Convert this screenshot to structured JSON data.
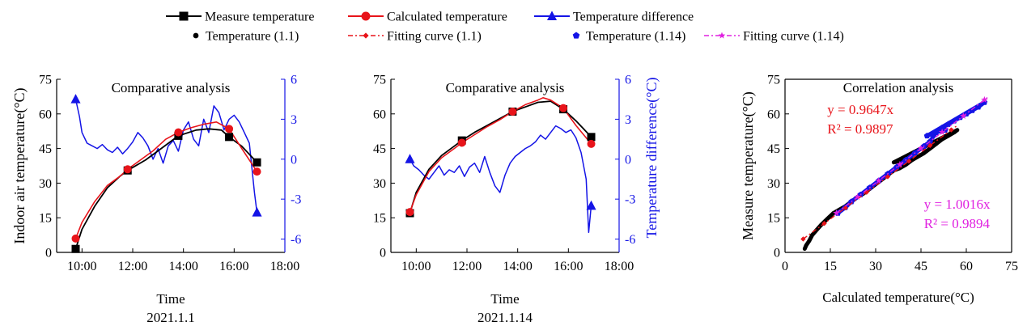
{
  "legend": {
    "items": [
      {
        "label": "Measure temperature",
        "color": "#000000",
        "marker": "square",
        "line": "solid"
      },
      {
        "label": "Calculated temperature",
        "color": "#e8141a",
        "marker": "circle",
        "line": "solid"
      },
      {
        "label": "Temperature difference",
        "color": "#1414e6",
        "marker": "triangle",
        "line": "solid"
      },
      {
        "label": "Temperature (1.1)",
        "color": "#000000",
        "marker": "dot",
        "line": "none"
      },
      {
        "label": "Fitting curve (1.1)",
        "color": "#e8141a",
        "marker": "diamond",
        "line": "dashdot"
      },
      {
        "label": "Temperature (1.14)",
        "color": "#1414e6",
        "marker": "pentagon",
        "line": "none"
      },
      {
        "label": "Fitting curve (1.14)",
        "color": "#e020e0",
        "marker": "star",
        "line": "dashdot"
      }
    ]
  },
  "chart_data": [
    {
      "type": "line",
      "title": "Comparative analysis",
      "xlabel": "Time",
      "sublabel": "2021.1.1",
      "ylabel": "Indoor air temperature(°C)",
      "y2label": "",
      "xlim": [
        9,
        18
      ],
      "xticks": [
        10,
        12,
        14,
        16,
        18
      ],
      "xticklabels": [
        "10:00",
        "12:00",
        "14:00",
        "16:00",
        "18:00"
      ],
      "ylim": [
        0,
        75
      ],
      "yticks": [
        0,
        15,
        30,
        45,
        60,
        75
      ],
      "y2lim": [
        -7,
        6
      ],
      "y2ticks": [
        -6,
        -3,
        0,
        3,
        6
      ],
      "y2color": "#1414e6",
      "measured": {
        "x": [
          9.75,
          10.0,
          10.5,
          11.0,
          11.5,
          11.8,
          12.5,
          13.0,
          13.8,
          14.5,
          15.0,
          15.5,
          15.8,
          16.3,
          16.9
        ],
        "y": [
          1.5,
          10,
          20,
          28,
          33,
          35.5,
          40,
          44,
          50.5,
          53,
          53.5,
          53,
          50,
          46,
          39
        ]
      },
      "measured_markers": {
        "x": [
          9.75,
          11.8,
          13.8,
          15.8,
          16.9
        ],
        "y": [
          1.5,
          35.5,
          50.5,
          50,
          39
        ]
      },
      "calculated": {
        "x": [
          9.75,
          10.0,
          10.5,
          11.0,
          11.5,
          11.8,
          12.3,
          12.8,
          13.3,
          13.8,
          14.3,
          14.8,
          15.3,
          15.8,
          16.3,
          16.9
        ],
        "y": [
          6,
          13,
          22,
          29,
          33,
          36,
          40,
          44,
          49,
          52,
          54,
          55.5,
          56.5,
          53.5,
          45,
          35
        ]
      },
      "calculated_markers": {
        "x": [
          9.75,
          11.8,
          13.8,
          15.8,
          16.9
        ],
        "y": [
          6,
          36,
          52,
          53.5,
          35
        ]
      },
      "difference": {
        "x": [
          9.75,
          9.9,
          10.0,
          10.2,
          10.4,
          10.6,
          10.8,
          11.0,
          11.2,
          11.4,
          11.6,
          11.8,
          12.0,
          12.2,
          12.4,
          12.6,
          12.8,
          13.0,
          13.2,
          13.4,
          13.6,
          13.8,
          14.0,
          14.2,
          14.4,
          14.6,
          14.8,
          15.0,
          15.2,
          15.4,
          15.6,
          15.8,
          16.0,
          16.2,
          16.4,
          16.6,
          16.8,
          16.9
        ],
        "y": [
          4.5,
          3.2,
          2.0,
          1.2,
          1.0,
          0.8,
          1.1,
          0.7,
          0.5,
          0.9,
          0.4,
          0.8,
          1.3,
          2.0,
          1.6,
          1.0,
          0.0,
          0.8,
          -0.3,
          1.0,
          1.4,
          0.6,
          2.2,
          2.8,
          1.5,
          1.0,
          3.0,
          2.0,
          4.0,
          3.5,
          2.2,
          3.0,
          3.3,
          2.8,
          2.0,
          1.2,
          -2.5,
          -4.0
        ]
      },
      "difference_markers": {
        "x": [
          9.75,
          16.9
        ],
        "y": [
          4.5,
          -4.0
        ]
      }
    },
    {
      "type": "line",
      "title": "Comparative analysis",
      "xlabel": "Time",
      "sublabel": "2021.1.14",
      "ylabel": "",
      "y2label": "Temperature difference(°C)",
      "xlim": [
        9,
        18
      ],
      "xticks": [
        10,
        12,
        14,
        16,
        18
      ],
      "xticklabels": [
        "10:00",
        "12:00",
        "14:00",
        "16:00",
        "18:00"
      ],
      "ylim": [
        0,
        75
      ],
      "yticks": [
        0,
        15,
        30,
        45,
        60,
        75
      ],
      "y2lim": [
        -7,
        6
      ],
      "y2ticks": [
        -6,
        -3,
        0,
        3,
        6
      ],
      "y2color": "#1414e6",
      "measured": {
        "x": [
          9.75,
          10.0,
          10.5,
          11.0,
          11.5,
          11.8,
          12.3,
          12.8,
          13.3,
          13.8,
          14.3,
          14.8,
          15.3,
          15.8,
          16.3,
          16.9
        ],
        "y": [
          17,
          26,
          36,
          42,
          46,
          48.5,
          52,
          55,
          58,
          61,
          63,
          65,
          65.5,
          62,
          57,
          50
        ]
      },
      "measured_markers": {
        "x": [
          9.75,
          11.8,
          13.8,
          15.8,
          16.9
        ],
        "y": [
          17,
          48.5,
          61,
          62,
          50
        ]
      },
      "calculated": {
        "x": [
          9.75,
          10.0,
          10.5,
          11.0,
          11.5,
          11.8,
          12.3,
          12.8,
          13.3,
          13.8,
          14.3,
          14.8,
          15.0,
          15.3,
          15.8,
          16.3,
          16.9
        ],
        "y": [
          17.5,
          25,
          35,
          41,
          45,
          47.5,
          51,
          54.5,
          57.5,
          61,
          64,
          66,
          67,
          66,
          62.5,
          55,
          47
        ]
      },
      "calculated_markers": {
        "x": [
          9.75,
          11.8,
          13.8,
          15.8,
          16.9
        ],
        "y": [
          17.5,
          47.5,
          61,
          62.5,
          47
        ]
      },
      "difference": {
        "x": [
          9.75,
          9.9,
          10.1,
          10.3,
          10.5,
          10.7,
          10.9,
          11.1,
          11.3,
          11.5,
          11.7,
          11.9,
          12.1,
          12.3,
          12.5,
          12.7,
          12.9,
          13.1,
          13.3,
          13.5,
          13.7,
          13.9,
          14.1,
          14.3,
          14.5,
          14.7,
          14.9,
          15.1,
          15.3,
          15.5,
          15.7,
          15.9,
          16.1,
          16.3,
          16.5,
          16.7,
          16.8,
          16.9
        ],
        "y": [
          0.0,
          -0.5,
          -0.8,
          -1.2,
          -1.5,
          -1.0,
          -0.5,
          -1.2,
          -0.8,
          -1.0,
          -0.5,
          -1.3,
          -0.6,
          -0.3,
          -1.0,
          0.2,
          -1.0,
          -2.0,
          -2.5,
          -1.2,
          -0.3,
          0.2,
          0.5,
          0.8,
          1.0,
          1.3,
          1.8,
          1.5,
          2.0,
          2.5,
          2.3,
          2.0,
          2.2,
          1.6,
          0.5,
          -1.5,
          -5.5,
          -3.5
        ]
      },
      "difference_markers": {
        "x": [
          9.75,
          16.9
        ],
        "y": [
          0.0,
          -3.5
        ]
      }
    },
    {
      "type": "scatter",
      "title": "Correlation analysis",
      "xlabel": "Calculated temperature(°C)",
      "ylabel": "Measure temperature(°C)",
      "xlim": [
        0,
        75
      ],
      "xticks": [
        0,
        15,
        30,
        45,
        60,
        75
      ],
      "ylim": [
        0,
        75
      ],
      "yticks": [
        0,
        15,
        30,
        45,
        60,
        75
      ],
      "annotations": [
        {
          "lines": [
            "y = 0.9647x",
            "R² = 0.9897"
          ],
          "color": "#e8141a",
          "x": 14,
          "y": 60
        },
        {
          "lines": [
            "y = 1.0016x",
            "R² = 0.9894"
          ],
          "color": "#e020e0",
          "x": 46,
          "y": 19
        }
      ],
      "series": [
        {
          "name": "Temperature (1.1)",
          "color": "#000000",
          "x": [
            6.5,
            7.0,
            8.0,
            9.0,
            10.0,
            12.0,
            14.0,
            16.0,
            18.0,
            20.0,
            22.0,
            24.0,
            26.0,
            28.0,
            30.0,
            32.0,
            34.0,
            36.0,
            38.0,
            40.0,
            42.0,
            44.0,
            46.0,
            48.0,
            50.0,
            52.0,
            54.0,
            56.0,
            57.0,
            36.0,
            38.0,
            40.0
          ],
          "y": [
            1.5,
            3.0,
            5.0,
            7.5,
            9.0,
            12.0,
            14.5,
            17.0,
            18.5,
            20.0,
            22.0,
            24.0,
            25.5,
            27.5,
            29.5,
            31.5,
            33.5,
            35.5,
            36.5,
            38.0,
            40.0,
            41.5,
            43.0,
            45.0,
            47.0,
            49.0,
            50.5,
            52.0,
            53.0,
            39.0,
            39.5,
            40.0
          ]
        },
        {
          "name": "Temperature (1.14)",
          "color": "#1414e6",
          "x": [
            17.5,
            20.0,
            22.0,
            25.0,
            28.0,
            31.0,
            34.0,
            37.0,
            40.0,
            43.0,
            46.0,
            48.0,
            50.0,
            52.0,
            54.0,
            56.0,
            58.0,
            60.0,
            62.0,
            64.0,
            66.0,
            47.0,
            50.0,
            53.0
          ],
          "y": [
            17.0,
            19.5,
            22.0,
            25.0,
            28.0,
            31.0,
            34.0,
            37.0,
            40.0,
            43.0,
            46.0,
            48.0,
            52.0,
            54.0,
            55.5,
            57.0,
            58.5,
            60.0,
            61.5,
            63.0,
            65.0,
            50.5,
            52.0,
            53.0
          ]
        },
        {
          "name": "Fitting curve (1.1)",
          "color": "#e8141a",
          "fit_slope": 0.9647,
          "x_range": [
            6,
            57
          ]
        },
        {
          "name": "Fitting curve (1.14)",
          "color": "#e020e0",
          "fit_slope": 1.0016,
          "x_range": [
            17,
            67
          ]
        }
      ]
    }
  ]
}
